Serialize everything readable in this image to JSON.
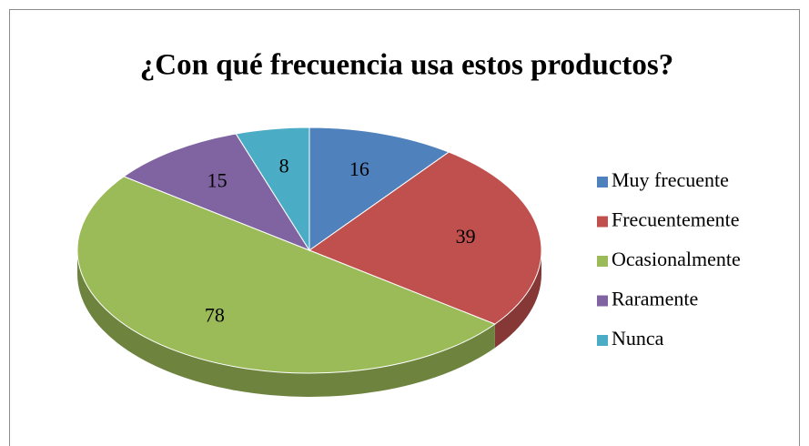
{
  "chart_data": {
    "type": "pie",
    "title": "¿Con qué frecuencia usa estos productos?",
    "categories": [
      "Muy frecuente",
      "Frecuentemente",
      "Ocasionalmente",
      "Raramente",
      "Nunca"
    ],
    "values": [
      16,
      39,
      78,
      15,
      8
    ],
    "colors": [
      "#4f81bd",
      "#c0504d",
      "#9bbb59",
      "#8064a2",
      "#4bacc6"
    ],
    "legend": "right"
  }
}
